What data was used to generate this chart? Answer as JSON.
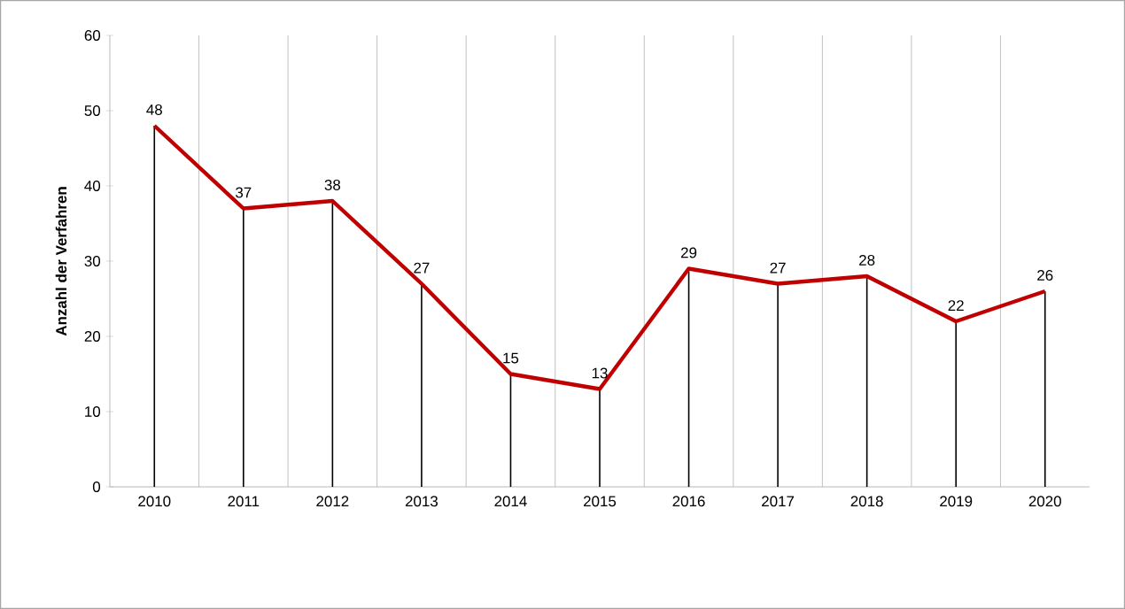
{
  "chart_data": {
    "type": "line",
    "ylabel": "Anzahl der Verfahren",
    "categories": [
      "2010",
      "2011",
      "2012",
      "2013",
      "2014",
      "2015",
      "2016",
      "2017",
      "2018",
      "2019",
      "2020"
    ],
    "values": [
      48,
      37,
      38,
      27,
      15,
      13,
      29,
      27,
      28,
      22,
      26
    ],
    "color": "#c00000",
    "ylim": [
      0,
      60
    ],
    "yticks": [
      0,
      10,
      20,
      30,
      40,
      50,
      60
    ],
    "grid": "x",
    "data_labels": true,
    "marker": "none",
    "line_style": "solid"
  }
}
